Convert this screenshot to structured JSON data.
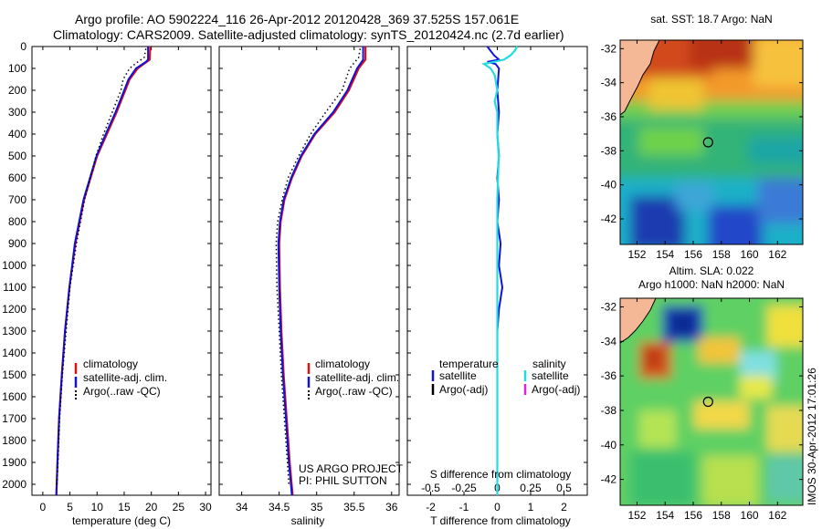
{
  "header": {
    "line1": "Argo profile: AO 5902224_116 26-Apr-2012 20120428_369 37.525S 157.061E",
    "line2": "Climatology: CARS2009. Satellite-adjusted climatology: synTS_20120424.nc (2.7d earlier)"
  },
  "colors": {
    "climatology": "#dd1111",
    "satellite": "#1111dd",
    "argo": "#000000",
    "salinity_satellite": "#22dddd",
    "salinity_argo": "#dd22dd",
    "land": "#f4b896"
  },
  "credit": {
    "line1": "US ARGO PROJECT",
    "line2": "PI: PHIL SUTTON"
  },
  "watermark": "IMOS 30-Apr-2012 17:01:26",
  "chart_data": [
    {
      "id": "temperature",
      "type": "line",
      "xlabel": "temperature (deg C)",
      "ylabel": "",
      "xlim": [
        -2,
        31
      ],
      "ylim": [
        2050,
        0
      ],
      "x_ticks": [
        0,
        5,
        10,
        15,
        20,
        25,
        30
      ],
      "y_ticks": [
        0,
        100,
        200,
        300,
        400,
        500,
        600,
        700,
        800,
        900,
        1000,
        1100,
        1200,
        1300,
        1400,
        1500,
        1600,
        1700,
        1800,
        1900,
        2000
      ],
      "legend": [
        "climatology",
        "satellite-adj. clim.",
        "Argo(..raw -QC)"
      ],
      "series": [
        {
          "name": "climatology",
          "depth": [
            0,
            60,
            100,
            150,
            200,
            300,
            400,
            500,
            700,
            900,
            1100,
            1300,
            1500,
            1700,
            1900,
            2050
          ],
          "values": [
            19.8,
            19.7,
            17.5,
            16.0,
            15.2,
            13.6,
            11.8,
            10.0,
            7.6,
            6.0,
            4.9,
            4.1,
            3.5,
            3.0,
            2.7,
            2.5
          ]
        },
        {
          "name": "satellite-adj. clim.",
          "depth": [
            0,
            60,
            70,
            100,
            150,
            200,
            300,
            400,
            500,
            700,
            900,
            1100,
            1300,
            1500,
            1700,
            1900,
            2050
          ],
          "values": [
            19.4,
            19.4,
            19.0,
            17.2,
            15.8,
            15.0,
            13.4,
            11.6,
            9.9,
            7.5,
            5.9,
            4.9,
            4.1,
            3.5,
            3.0,
            2.7,
            2.5
          ]
        },
        {
          "name": "Argo(..raw -QC)",
          "depth": [
            10,
            50,
            80,
            100,
            150,
            200,
            300,
            400,
            500,
            700,
            900,
            1100,
            1300,
            1500,
            1700,
            1900,
            2000
          ],
          "values": [
            19.0,
            18.7,
            17.0,
            16.0,
            14.8,
            14.4,
            12.8,
            11.2,
            9.8,
            7.7,
            6.2,
            5.0,
            4.3,
            3.6,
            3.1,
            2.8,
            2.6
          ]
        }
      ]
    },
    {
      "id": "salinity",
      "type": "line",
      "xlabel": "salinity",
      "ylabel": "",
      "xlim": [
        33.7,
        36.1
      ],
      "ylim": [
        2050,
        0
      ],
      "x_ticks": [
        34,
        34.5,
        35,
        35.5,
        36
      ],
      "legend": [
        "climatology",
        "satellite-adj. clim.",
        "Argo(..raw -QC)"
      ],
      "series": [
        {
          "name": "climatology",
          "depth": [
            0,
            60,
            100,
            200,
            300,
            400,
            500,
            600,
            700,
            800,
            900,
            1100,
            1300,
            1500,
            1700,
            1900,
            2050
          ],
          "values": [
            35.65,
            35.65,
            35.56,
            35.43,
            35.24,
            34.98,
            34.8,
            34.67,
            34.57,
            34.52,
            34.5,
            34.51,
            34.53,
            34.56,
            34.6,
            34.64,
            34.68
          ]
        },
        {
          "name": "satellite-adj. clim.",
          "depth": [
            0,
            60,
            100,
            200,
            300,
            400,
            500,
            600,
            700,
            800,
            900,
            1100,
            1300,
            1500,
            1700,
            1900,
            2050
          ],
          "values": [
            35.62,
            35.62,
            35.54,
            35.41,
            35.22,
            34.97,
            34.79,
            34.66,
            34.56,
            34.51,
            34.49,
            34.5,
            34.52,
            34.55,
            34.59,
            34.63,
            34.67
          ]
        },
        {
          "name": "Argo(..raw -QC)",
          "depth": [
            10,
            50,
            100,
            200,
            300,
            400,
            500,
            600,
            700,
            800,
            900,
            1100,
            1300,
            1500,
            1700,
            1900,
            2000
          ],
          "values": [
            35.58,
            35.56,
            35.44,
            35.34,
            35.12,
            34.92,
            34.76,
            34.62,
            34.54,
            34.48,
            34.46,
            34.47,
            34.5,
            34.53,
            34.57,
            34.61,
            34.63
          ]
        }
      ]
    },
    {
      "id": "differences",
      "type": "line",
      "xlabel": "T difference from climatology",
      "ylabel": "",
      "xlim": [
        -2.7,
        2.7
      ],
      "ylim": [
        2050,
        0
      ],
      "x_ticks": [
        -2,
        -1,
        0,
        1,
        2
      ],
      "s_axis_label": "S difference from climatology",
      "s_ticks": [
        -0.5,
        -0.25,
        0,
        0.25,
        0.5
      ],
      "legend_titles": [
        "temperature",
        "salinity"
      ],
      "legend": [
        "satellite",
        "Argo(-adj)",
        "satellite",
        "Argo(-adj)"
      ],
      "series": [
        {
          "name": "temperature satellite",
          "depth": [
            0,
            20,
            40,
            60,
            70,
            80,
            100,
            200,
            300,
            400,
            500,
            600,
            700,
            800,
            900,
            1000,
            1100,
            1200,
            1300,
            1500,
            1700,
            1900,
            2050
          ],
          "values": [
            -0.3,
            -0.2,
            -0.1,
            0.05,
            -0.3,
            -0.05,
            0.05,
            0.0,
            0.05,
            0.0,
            0.05,
            0.0,
            0.05,
            0.0,
            0.1,
            0.05,
            0.15,
            0.05,
            0.0,
            0.0,
            0.0,
            0.0,
            0.0
          ]
        },
        {
          "name": "salinity satellite",
          "depth": [
            0,
            20,
            40,
            60,
            80,
            100,
            130,
            200,
            250,
            300,
            400,
            500,
            700,
            900,
            1100,
            1300,
            1500,
            1700,
            1900,
            2050
          ],
          "values": [
            0.15,
            0.13,
            0.1,
            0.05,
            -0.1,
            -0.05,
            -0.02,
            0.0,
            -0.02,
            0.0,
            0.0,
            0.01,
            0.0,
            0.0,
            0.0,
            0.0,
            0.0,
            0.0,
            0.0,
            0.0
          ]
        }
      ]
    },
    {
      "id": "sst_map",
      "type": "heatmap",
      "title": "sat. SST: 18.7 Argo: NaN",
      "x_ticks": [
        152,
        154,
        156,
        158,
        160,
        162
      ],
      "y_ticks": [
        -32,
        -34,
        -36,
        -38,
        -40,
        -42
      ],
      "xlim": [
        150.8,
        163.8
      ],
      "ylim": [
        -43.5,
        -31.5
      ],
      "marker": {
        "lon": 157.06,
        "lat": -37.5
      }
    },
    {
      "id": "sla_map",
      "type": "heatmap",
      "title": "Altim. SLA: 0.022",
      "subtitle": "Argo h1000: NaN h2000: NaN",
      "x_ticks": [
        152,
        154,
        156,
        158,
        160,
        162
      ],
      "y_ticks": [
        -32,
        -34,
        -36,
        -38,
        -40,
        -42
      ],
      "xlim": [
        150.8,
        163.8
      ],
      "ylim": [
        -43.5,
        -31.5
      ],
      "marker": {
        "lon": 157.06,
        "lat": -37.5
      }
    }
  ]
}
